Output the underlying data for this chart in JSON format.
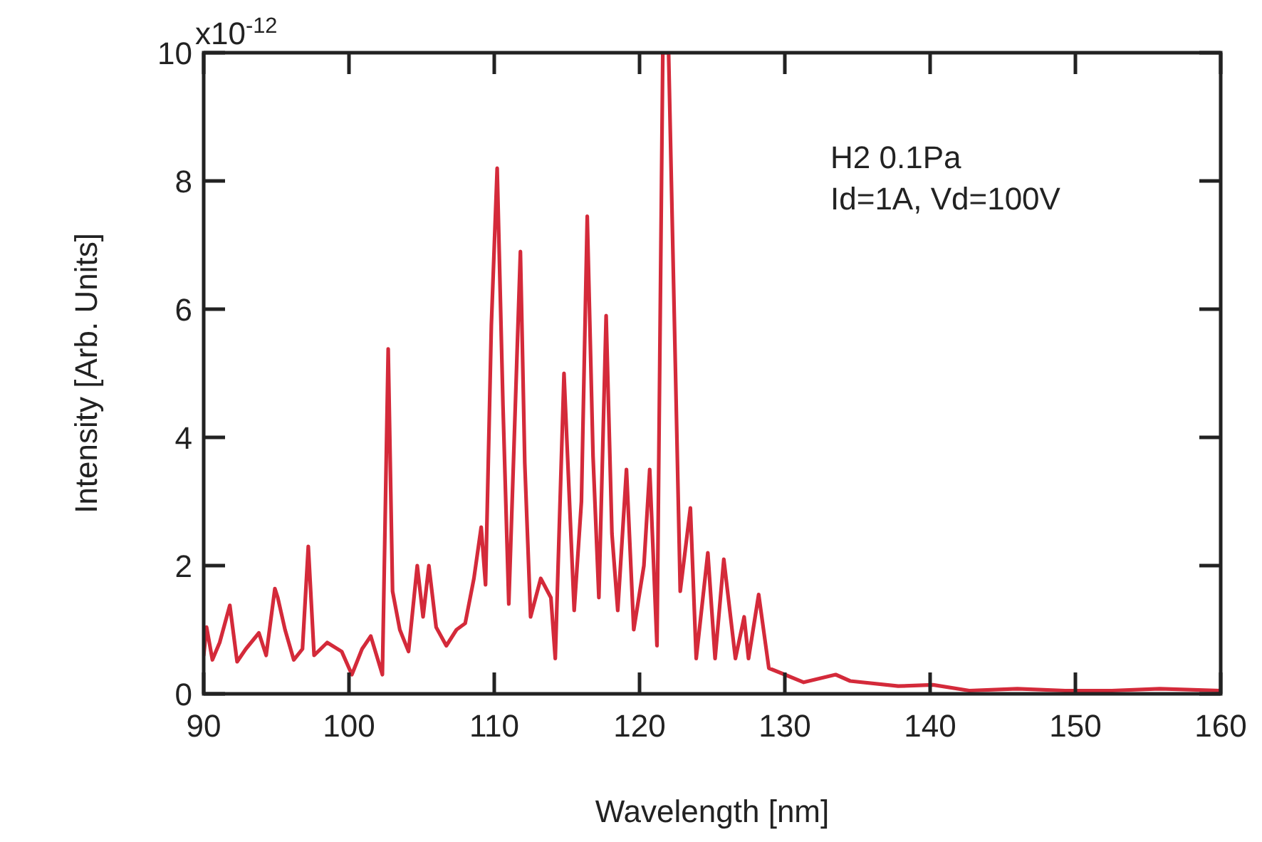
{
  "chart_data": {
    "type": "line",
    "xlabel": "Wavelength [nm]",
    "ylabel": "Intensity [Arb. Units]",
    "annotations": [
      "x10$^{-12}$",
      "H2 0.1Pa",
      "Id=1A, Vd=100V"
    ],
    "xlim": [
      90,
      160
    ],
    "xticks": [
      90,
      100,
      110,
      120,
      130,
      140,
      150,
      160
    ],
    "ylim": [
      0,
      10
    ],
    "yticks": [
      0,
      2,
      4,
      6,
      8,
      10
    ],
    "grid": false,
    "marker": "none",
    "line_style": "solid",
    "series": [
      {
        "color": "#d42a3a",
        "x": [
          90,
          90.2,
          90.6,
          91.1,
          91.8,
          92.3,
          92.9,
          93.8,
          94.3,
          94.9,
          95.1,
          95.6,
          96.2,
          96.8,
          97.2,
          97.6,
          98.5,
          99.5,
          100.2,
          100.9,
          101.5,
          102.3,
          102.7,
          103.0,
          103.5,
          104.1,
          104.7,
          105.1,
          105.5,
          106.0,
          106.7,
          107.4,
          108.0,
          108.6,
          109.1,
          109.4,
          109.8,
          110.2,
          110.6,
          111.0,
          111.8,
          112.1,
          112.5,
          113.2,
          113.9,
          114.2,
          114.8,
          115.5,
          116.0,
          116.4,
          116.8,
          117.2,
          117.7,
          118.1,
          118.5,
          119.1,
          119.6,
          120.3,
          120.7,
          121.2,
          121.6,
          122.0,
          122.8,
          123.5,
          123.9,
          124.7,
          125.2,
          125.8,
          126.6,
          127.2,
          127.5,
          128.2,
          128.9,
          130.0,
          131.3,
          133.5,
          134.5,
          137.8,
          140.2,
          142.7,
          146.0,
          149.3,
          152.5,
          155.8,
          160
        ],
        "values": [
          0.6,
          1.04,
          0.53,
          0.8,
          1.38,
          0.5,
          0.7,
          0.95,
          0.6,
          1.64,
          1.5,
          1.0,
          0.53,
          0.7,
          2.3,
          0.6,
          0.8,
          0.66,
          0.3,
          0.7,
          0.9,
          0.3,
          5.38,
          1.6,
          1.0,
          0.66,
          2.0,
          1.2,
          2.0,
          1.04,
          0.75,
          1.0,
          1.1,
          1.8,
          2.6,
          1.7,
          5.75,
          8.2,
          4.5,
          1.4,
          6.9,
          3.6,
          1.2,
          1.8,
          1.5,
          0.55,
          5.0,
          1.3,
          3.0,
          7.45,
          3.7,
          1.5,
          5.9,
          2.5,
          1.3,
          3.5,
          1.0,
          2.0,
          3.5,
          0.75,
          10,
          10,
          1.6,
          2.9,
          0.55,
          2.2,
          0.55,
          2.1,
          0.55,
          1.2,
          0.55,
          1.55,
          0.4,
          0.3,
          0.18,
          0.3,
          0.2,
          0.12,
          0.14,
          0.05,
          0.08,
          0.05,
          0.05,
          0.08,
          0.05
        ]
      }
    ]
  }
}
